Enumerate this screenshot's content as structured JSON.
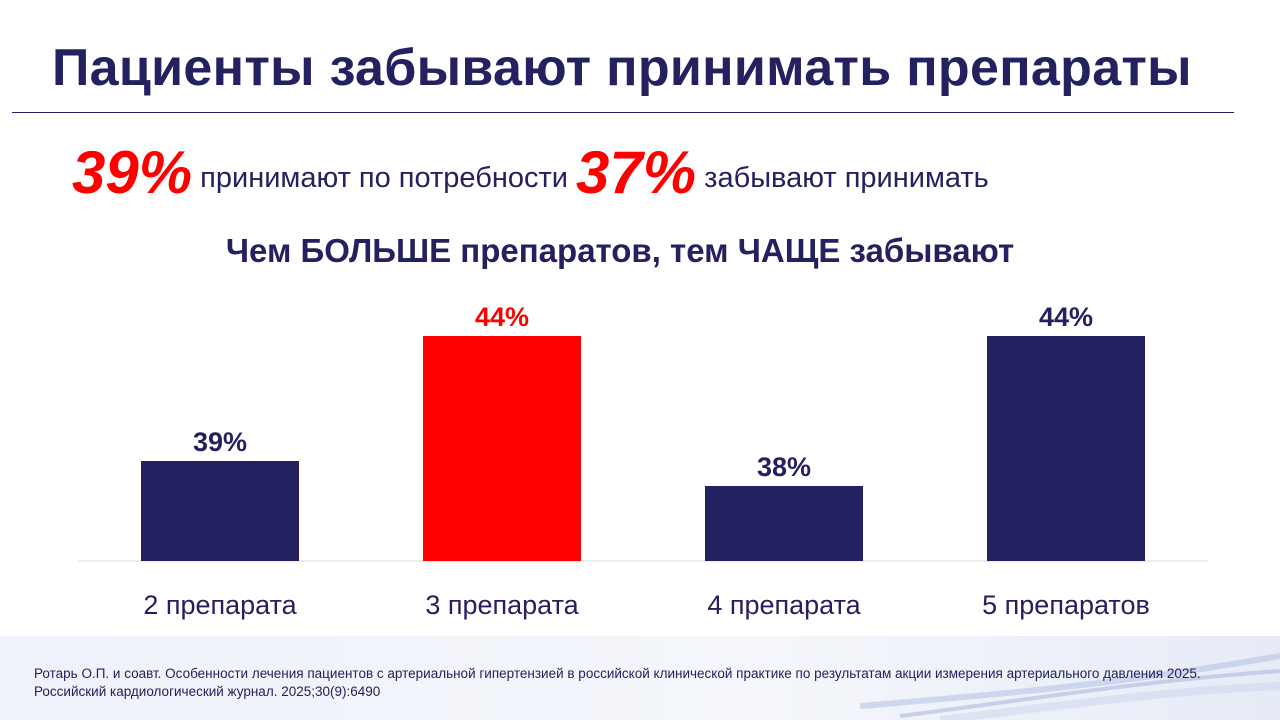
{
  "title": "Пациенты забывают принимать препараты",
  "stats": [
    {
      "value": "39%",
      "text": "принимают по потребности"
    },
    {
      "value": "37%",
      "text": "забывают принимать"
    }
  ],
  "colors": {
    "navy": "#23215f",
    "red": "#ff0000"
  },
  "chart_data": {
    "type": "bar",
    "title": "Чем БОЛЬШЕ препаратов, тем ЧАЩЕ забывают",
    "categories": [
      "2 препарата",
      "3 препарата",
      "4 препарата",
      "5 препаратов"
    ],
    "values": [
      39,
      44,
      38,
      44
    ],
    "data_labels": [
      "39%",
      "44%",
      "38%",
      "44%"
    ],
    "bar_colors": [
      "#23215f",
      "#ff0000",
      "#23215f",
      "#23215f"
    ],
    "ylim": [
      35,
      45
    ],
    "grid": false,
    "legend": "none"
  },
  "citation": "Ротарь О.П. и соавт. Особенности лечения пациентов с артериальной гипертензией в российской клинической практике по результатам акции измерения артериального давления 2025. Российский кардиологический журнал. 2025;30(9):6490"
}
